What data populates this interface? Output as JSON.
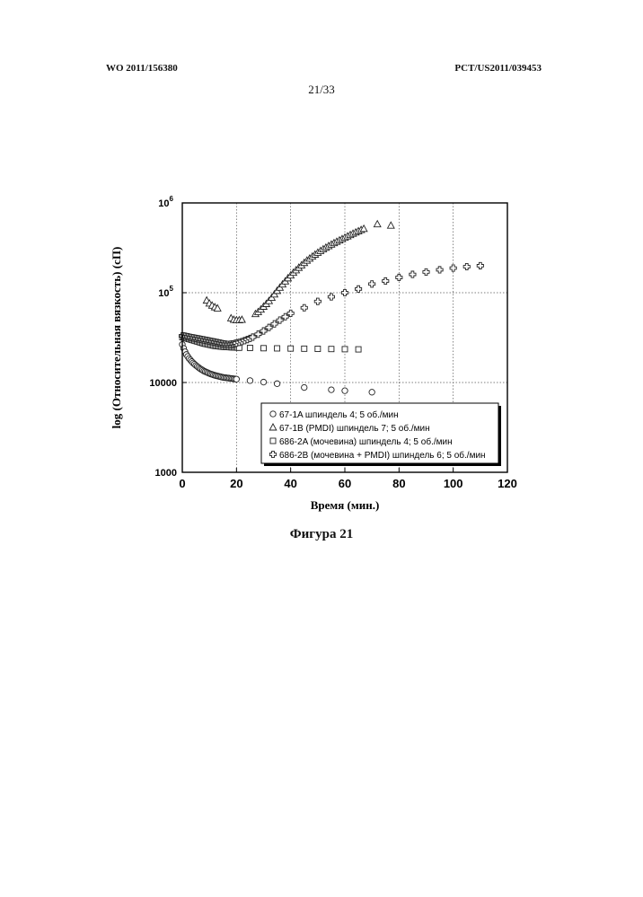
{
  "header": {
    "left": "WO 2011/156380",
    "right": "PCT/US2011/039453",
    "page": "21/33"
  },
  "caption": "Фигура 21",
  "chart_data": {
    "type": "scatter",
    "xlabel": "Время (мин.)",
    "ylabel": "log (Относительная вязкость) (сП)",
    "xlim": [
      0,
      120
    ],
    "ylim": [
      1000,
      1000000
    ],
    "yscale": "log",
    "grid": true,
    "legend_position": "bottom-right",
    "x_ticks": [
      "0",
      "20",
      "40",
      "60",
      "80",
      "100",
      "120"
    ],
    "y_ticks": [
      {
        "value": 1000,
        "base": "1000",
        "exp": ""
      },
      {
        "value": 10000,
        "base": "10000",
        "exp": ""
      },
      {
        "value": 100000,
        "base": "10",
        "exp": "5"
      },
      {
        "value": 1000000,
        "base": "10",
        "exp": "6"
      }
    ],
    "series": [
      {
        "name": "67-1A шпиндель 4; 5 об./мин",
        "marker": "circle",
        "x": [
          0,
          0.5,
          1,
          1.5,
          2,
          2.5,
          3,
          3.5,
          4,
          4.5,
          5,
          5.5,
          6,
          6.5,
          7,
          7.5,
          8,
          8.5,
          9,
          9.5,
          10,
          10.5,
          11,
          11.5,
          12,
          12.5,
          13,
          13.5,
          14,
          14.5,
          15,
          15.5,
          16,
          16.5,
          17,
          17.5,
          18,
          18.5,
          19,
          19.5,
          20,
          25,
          30,
          35,
          45,
          55,
          60,
          70
        ],
        "y": [
          26500,
          24000,
          22000,
          20500,
          19500,
          18500,
          17800,
          17100,
          16500,
          16000,
          15500,
          15100,
          14700,
          14300,
          14000,
          13700,
          13400,
          13200,
          13000,
          12800,
          12600,
          12450,
          12300,
          12150,
          12000,
          11900,
          11800,
          11700,
          11600,
          11500,
          11400,
          11350,
          11300,
          11250,
          11200,
          11150,
          11100,
          11050,
          11000,
          10950,
          10900,
          10500,
          10100,
          9700,
          8800,
          8300,
          8100,
          7800
        ]
      },
      {
        "name": "67-1B (PMDI) шпиндель 7; 5 об./мин",
        "marker": "triangle",
        "x": [
          9,
          10,
          11,
          12,
          13,
          18,
          19,
          20,
          21,
          22,
          27,
          28,
          29,
          30,
          31,
          32,
          33,
          34,
          35,
          36,
          37,
          38,
          39,
          40,
          41,
          42,
          43,
          44,
          45,
          46,
          47,
          48,
          49,
          50,
          51,
          52,
          53,
          54,
          55,
          56,
          57,
          58,
          59,
          60,
          61,
          62,
          63,
          64,
          65,
          66,
          67,
          72,
          77
        ],
        "y": [
          82000,
          76000,
          72000,
          69000,
          67000,
          52000,
          50000,
          49500,
          49500,
          50000,
          58000,
          61000,
          65000,
          70000,
          75000,
          81000,
          88000,
          96000,
          105000,
          114000,
          124000,
          134000,
          145000,
          156000,
          167000,
          178000,
          190000,
          202000,
          215000,
          228000,
          240000,
          253000,
          266000,
          279000,
          292000,
          305000,
          318000,
          331000,
          344000,
          357000,
          370000,
          383000,
          396000,
          410000,
          425000,
          440000,
          455000,
          470000,
          485000,
          500000,
          515000,
          580000,
          560000
        ]
      },
      {
        "name": "686-2A (мочевина) шпиндель 4; 5 об./мин",
        "marker": "square",
        "x": [
          0,
          0.5,
          1,
          1.5,
          2,
          2.5,
          3,
          3.5,
          4,
          4.5,
          5,
          5.5,
          6,
          6.5,
          7,
          7.5,
          8,
          8.5,
          9,
          9.5,
          10,
          10.5,
          11,
          11.5,
          12,
          12.5,
          13,
          13.5,
          14,
          14.5,
          15,
          15.5,
          16,
          16.5,
          17,
          17.5,
          18,
          18.5,
          19,
          19.5,
          20,
          20.5,
          21,
          25,
          30,
          35,
          40,
          45,
          50,
          55,
          60,
          65
        ],
        "y": [
          32000,
          31700,
          31400,
          31100,
          30800,
          30500,
          30200,
          29900,
          29600,
          29300,
          29000,
          28700,
          28400,
          28100,
          27800,
          27500,
          27200,
          27000,
          26800,
          26600,
          26400,
          26200,
          26000,
          25800,
          25600,
          25500,
          25400,
          25300,
          25200,
          25100,
          25000,
          24950,
          24900,
          24850,
          24800,
          24750,
          24700,
          24650,
          24600,
          24550,
          24500,
          24450,
          24400,
          24300,
          24100,
          24000,
          23900,
          23800,
          23700,
          23600,
          23500,
          23400
        ]
      },
      {
        "name": "686-2B (мочевина + PMDI) шпиндель 6; 5 об./мин",
        "marker": "cross",
        "x": [
          0,
          0.5,
          1,
          1.5,
          2,
          2.5,
          3,
          3.5,
          4,
          4.5,
          5,
          5.5,
          6,
          6.5,
          7,
          7.5,
          8,
          8.5,
          9,
          9.5,
          10,
          10.5,
          11,
          11.5,
          12,
          12.5,
          13,
          13.5,
          14,
          14.5,
          15,
          15.5,
          16,
          16.5,
          17,
          17.5,
          18,
          18.5,
          19,
          19.5,
          20,
          21,
          22,
          23,
          24,
          25,
          26,
          28,
          30,
          32,
          34,
          36,
          38,
          40,
          45,
          50,
          55,
          60,
          65,
          70,
          75,
          80,
          85,
          90,
          95,
          100,
          105,
          110
        ],
        "y": [
          33000,
          33000,
          32800,
          32500,
          32300,
          32000,
          31800,
          31600,
          31400,
          31200,
          31000,
          30800,
          30600,
          30400,
          30200,
          30000,
          29800,
          29600,
          29400,
          29200,
          29000,
          28800,
          28600,
          28400,
          28200,
          28000,
          27800,
          27600,
          27400,
          27200,
          27000,
          26800,
          26700,
          26600,
          26600,
          26600,
          26700,
          26800,
          27000,
          27200,
          27500,
          28000,
          28600,
          29300,
          30100,
          31000,
          32000,
          34500,
          37500,
          41000,
          45000,
          49500,
          54000,
          59000,
          68000,
          80000,
          90000,
          100000,
          110000,
          125000,
          135000,
          148000,
          160000,
          170000,
          180000,
          188000,
          195000,
          200000
        ]
      }
    ]
  }
}
